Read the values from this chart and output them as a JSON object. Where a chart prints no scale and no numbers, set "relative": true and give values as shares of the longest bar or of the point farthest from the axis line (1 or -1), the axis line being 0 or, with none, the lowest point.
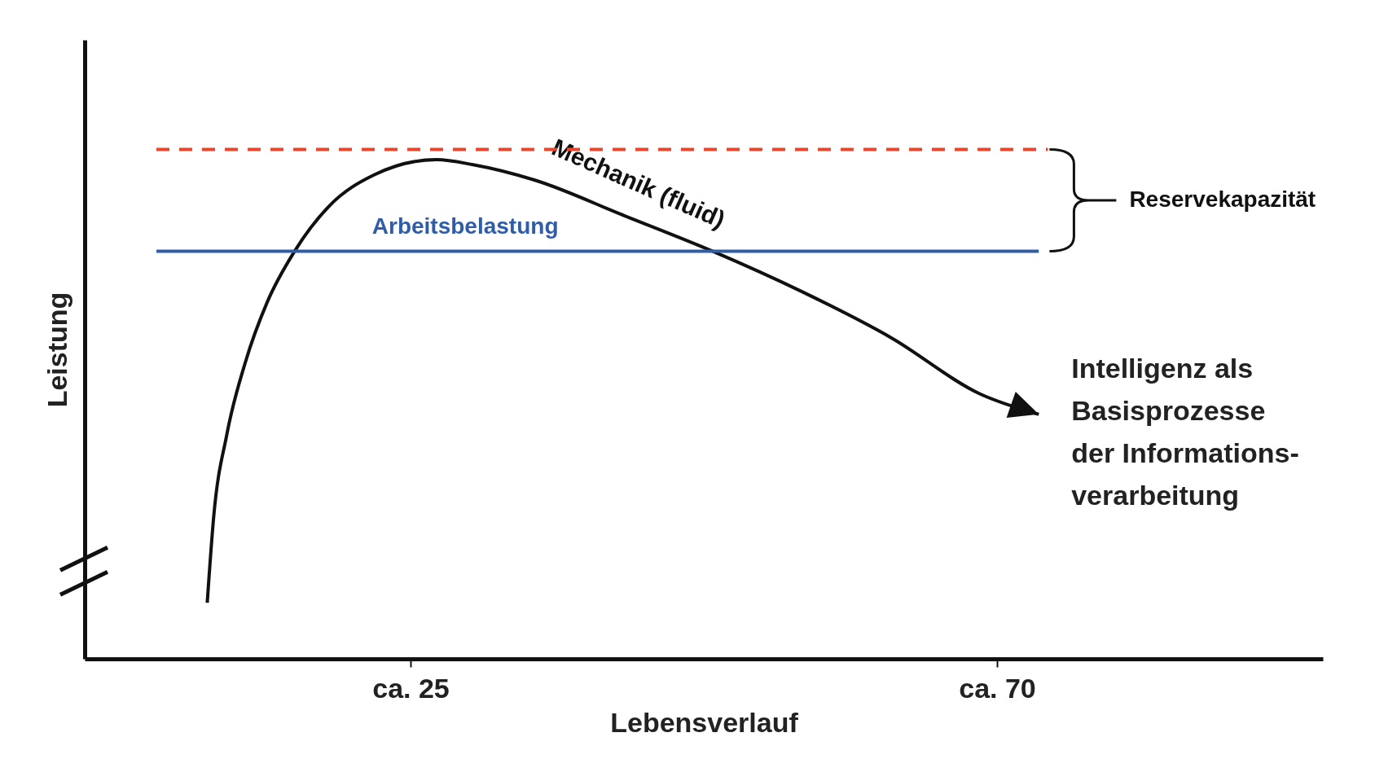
{
  "chart_data": {
    "type": "line",
    "relative": true,
    "xlabel": "Lebensverlauf",
    "ylabel": "Leistung",
    "xlim": [
      0,
      95
    ],
    "xticks": [
      {
        "value": 25,
        "label": "ca. 25"
      },
      {
        "value": 70,
        "label": "ca. 70"
      }
    ],
    "tick_labels": "x",
    "grid": false,
    "series": [
      {
        "name": "Mechanik (fluid)",
        "color": "#111111",
        "x": [
          9.4,
          9.9,
          10.9,
          12.3,
          14.0,
          16.1,
          18.8,
          22.2,
          27.0,
          29.8,
          34.5,
          41.4,
          48.2,
          55.1,
          61.9,
          68.7,
          73.2
        ],
        "values": [
          0.11,
          0.28,
          0.44,
          0.58,
          0.7,
          0.8,
          0.89,
          0.95,
          0.98,
          0.97,
          0.94,
          0.87,
          0.8,
          0.72,
          0.63,
          0.52,
          0.48
        ]
      },
      {
        "name": "Arbeitsbelastung",
        "color": "#2f5da8",
        "x": [
          5.5,
          73.2
        ],
        "values": [
          0.8,
          0.8
        ]
      },
      {
        "color": "#e8472f",
        "line_style": "dashed",
        "x": [
          5.5,
          73.9
        ],
        "values": [
          1,
          1
        ]
      }
    ],
    "annotations": [
      "Reservekapazität",
      "Intelligenz als\nBasisprozesse\nder Informations-\nverarbeitung"
    ]
  }
}
